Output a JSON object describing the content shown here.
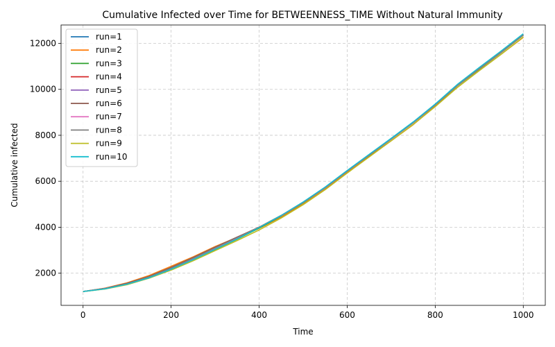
{
  "chart_data": {
    "type": "line",
    "title": "Cumulative Infected over Time for BETWEENNESS_TIME Without Natural Immunity",
    "xlabel": "Time",
    "ylabel": "Cumulative infected",
    "xlim": [
      -50,
      1050
    ],
    "ylim": [
      600,
      12800
    ],
    "xticks": [
      0,
      200,
      400,
      600,
      800,
      1000
    ],
    "yticks": [
      2000,
      4000,
      6000,
      8000,
      10000,
      12000
    ],
    "grid": true,
    "legend_position": "top-left",
    "x": [
      0,
      50,
      100,
      150,
      200,
      250,
      300,
      350,
      400,
      450,
      500,
      550,
      600,
      650,
      700,
      750,
      800,
      850,
      900,
      950,
      1000
    ],
    "series": [
      {
        "name": "run=1",
        "color": "#1f77b4",
        "values": [
          1200,
          1330,
          1530,
          1820,
          2200,
          2630,
          3080,
          3530,
          3990,
          4500,
          5080,
          5720,
          6440,
          7140,
          7840,
          8550,
          9330,
          10170,
          10900,
          11620,
          12380
        ]
      },
      {
        "name": "run=2",
        "color": "#ff7f0e",
        "values": [
          1200,
          1350,
          1580,
          1900,
          2300,
          2710,
          3160,
          3560,
          3950,
          4450,
          5000,
          5650,
          6390,
          7080,
          7760,
          8460,
          9270,
          10080,
          10820,
          11530,
          12260
        ]
      },
      {
        "name": "run=3",
        "color": "#2ca02c",
        "values": [
          1200,
          1320,
          1520,
          1800,
          2170,
          2590,
          3030,
          3480,
          3960,
          4480,
          5060,
          5710,
          6430,
          7130,
          7830,
          8540,
          9320,
          10150,
          10880,
          11600,
          12360
        ]
      },
      {
        "name": "run=4",
        "color": "#d62728",
        "values": [
          1200,
          1340,
          1550,
          1850,
          2240,
          2670,
          3120,
          3560,
          4000,
          4510,
          5090,
          5730,
          6450,
          7150,
          7850,
          8560,
          9340,
          10180,
          10910,
          11630,
          12390
        ]
      },
      {
        "name": "run=5",
        "color": "#9467bd",
        "values": [
          1200,
          1330,
          1540,
          1830,
          2210,
          2640,
          3090,
          3540,
          3990,
          4500,
          5080,
          5720,
          6440,
          7140,
          7840,
          8550,
          9330,
          10170,
          10900,
          11620,
          12380
        ]
      },
      {
        "name": "run=6",
        "color": "#8c564b",
        "values": [
          1200,
          1340,
          1560,
          1860,
          2250,
          2680,
          3130,
          3570,
          4000,
          4510,
          5080,
          5720,
          6440,
          7140,
          7840,
          8550,
          9330,
          10170,
          10900,
          11620,
          12370
        ]
      },
      {
        "name": "run=7",
        "color": "#e377c2",
        "values": [
          1200,
          1330,
          1530,
          1820,
          2200,
          2630,
          3080,
          3530,
          3990,
          4500,
          5080,
          5720,
          6440,
          7140,
          7840,
          8550,
          9330,
          10170,
          10900,
          11620,
          12380
        ]
      },
      {
        "name": "run=8",
        "color": "#7f7f7f",
        "values": [
          1200,
          1330,
          1540,
          1840,
          2220,
          2650,
          3100,
          3550,
          4000,
          4510,
          5090,
          5730,
          6450,
          7150,
          7850,
          8560,
          9340,
          10180,
          10910,
          11630,
          12390
        ]
      },
      {
        "name": "run=9",
        "color": "#bcbd22",
        "values": [
          1200,
          1310,
          1500,
          1780,
          2130,
          2540,
          2980,
          3420,
          3880,
          4400,
          4980,
          5630,
          6360,
          7060,
          7760,
          8470,
          9250,
          10080,
          10810,
          11530,
          12280
        ]
      },
      {
        "name": "run=10",
        "color": "#17becf",
        "values": [
          1200,
          1320,
          1520,
          1800,
          2170,
          2590,
          3040,
          3490,
          3980,
          4510,
          5100,
          5750,
          6470,
          7170,
          7870,
          8580,
          9360,
          10210,
          10950,
          11670,
          12420
        ]
      }
    ]
  }
}
